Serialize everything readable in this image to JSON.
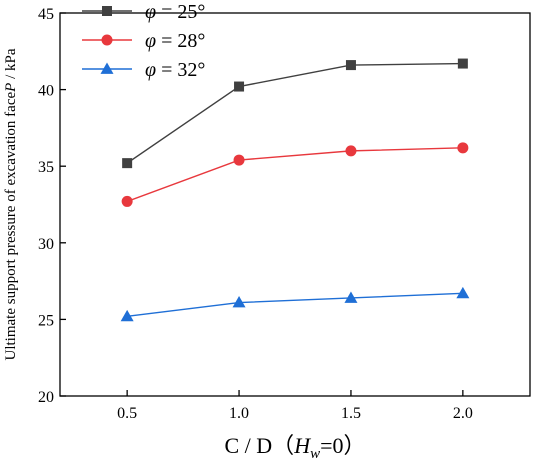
{
  "chart_data": {
    "type": "line",
    "xlabel": {
      "prefix": "C / D",
      "paren_open": "（",
      "var": "H",
      "sub": "w",
      "suffix": "=0）"
    },
    "ylabel": {
      "text": "Ultimate support pressure of excavation face",
      "var": "P",
      "unit": " / kPa"
    },
    "x": [
      0.5,
      1.0,
      1.5,
      2.0
    ],
    "x_tick_labels": [
      "0.5",
      "1.0",
      "1.5",
      "2.0"
    ],
    "xlim": [
      0.2,
      2.3
    ],
    "ylim": [
      20,
      45
    ],
    "y_ticks": [
      20,
      25,
      30,
      35,
      40,
      45
    ],
    "y_tick_labels": [
      "20",
      "25",
      "30",
      "35",
      "40",
      "45"
    ],
    "grid": false,
    "legend_placement": "top-left",
    "series": [
      {
        "phi_symbol": "φ",
        "name": " = 25°",
        "values": [
          35.2,
          40.2,
          41.6,
          41.7
        ],
        "color": "#404040",
        "marker": "square"
      },
      {
        "phi_symbol": "φ",
        "name": " = 28°",
        "values": [
          32.7,
          35.4,
          36.0,
          36.2
        ],
        "color": "#e8383d",
        "marker": "circle"
      },
      {
        "phi_symbol": "φ",
        "name": " = 32°",
        "values": [
          25.2,
          26.1,
          26.4,
          26.7
        ],
        "color": "#1f6fd6",
        "marker": "triangle"
      }
    ]
  }
}
